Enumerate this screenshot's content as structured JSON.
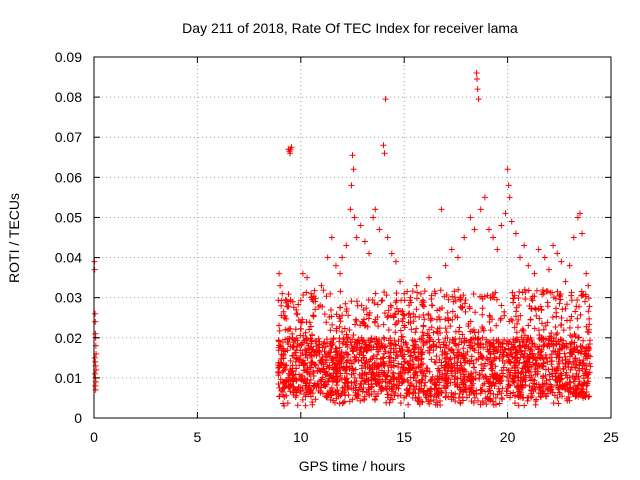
{
  "chart_data": {
    "type": "scatter",
    "title": "Day 211 of 2018, Rate Of TEC Index for receiver lama",
    "xlabel": "GPS time / hours",
    "ylabel": "ROTI / TECUs",
    "xlim": [
      0,
      25
    ],
    "ylim": [
      0,
      0.09
    ],
    "xticks": [
      0,
      5,
      10,
      15,
      20,
      25
    ],
    "xtick_labels": [
      "0",
      "5",
      "10",
      "15",
      "20",
      "25"
    ],
    "yticks": [
      0,
      0.01,
      0.02,
      0.03,
      0.04,
      0.05,
      0.06,
      0.07,
      0.08,
      0.09
    ],
    "ytick_labels": [
      "0",
      "0.01",
      "0.02",
      "0.03",
      "0.04",
      "0.05",
      "0.06",
      "0.07",
      "0.08",
      "0.09"
    ],
    "grid": true,
    "marker": "+",
    "color": "#ff0000",
    "series": [
      {
        "name": "ROTI",
        "points": [
          [
            0.02,
            0.039
          ],
          [
            0.03,
            0.037
          ],
          [
            0.05,
            0.026
          ],
          [
            0.06,
            0.024
          ],
          [
            0.07,
            0.021
          ],
          [
            0.08,
            0.02
          ],
          [
            0.09,
            0.018
          ],
          [
            0.1,
            0.016
          ],
          [
            0.04,
            0.015
          ],
          [
            0.06,
            0.014
          ],
          [
            0.08,
            0.013
          ],
          [
            0.1,
            0.012
          ],
          [
            0.05,
            0.011
          ],
          [
            0.07,
            0.01
          ],
          [
            0.09,
            0.009
          ],
          [
            0.06,
            0.008
          ],
          [
            0.08,
            0.007
          ],
          [
            8.95,
            0.036
          ],
          [
            9.0,
            0.033
          ],
          [
            9.05,
            0.028
          ],
          [
            9.1,
            0.031
          ],
          [
            9.2,
            0.025
          ],
          [
            9.25,
            0.022
          ],
          [
            9.4,
            0.067
          ],
          [
            9.45,
            0.0665
          ],
          [
            9.5,
            0.067
          ],
          [
            9.55,
            0.0675
          ],
          [
            9.48,
            0.066
          ],
          [
            9.6,
            0.02
          ],
          [
            9.8,
            0.026
          ],
          [
            10.0,
            0.024
          ],
          [
            10.1,
            0.036
          ],
          [
            10.3,
            0.035
          ],
          [
            10.5,
            0.031
          ],
          [
            10.7,
            0.029
          ],
          [
            11.0,
            0.033
          ],
          [
            11.3,
            0.04
          ],
          [
            11.5,
            0.045
          ],
          [
            11.7,
            0.038
          ],
          [
            11.9,
            0.036
          ],
          [
            12.0,
            0.04
          ],
          [
            12.2,
            0.043
          ],
          [
            12.4,
            0.052
          ],
          [
            12.45,
            0.058
          ],
          [
            12.5,
            0.0655
          ],
          [
            12.55,
            0.062
          ],
          [
            12.6,
            0.05
          ],
          [
            12.7,
            0.045
          ],
          [
            12.9,
            0.048
          ],
          [
            13.1,
            0.044
          ],
          [
            13.3,
            0.041
          ],
          [
            13.5,
            0.05
          ],
          [
            13.6,
            0.052
          ],
          [
            13.8,
            0.047
          ],
          [
            14.0,
            0.068
          ],
          [
            14.05,
            0.066
          ],
          [
            14.1,
            0.0795
          ],
          [
            14.2,
            0.045
          ],
          [
            14.4,
            0.041
          ],
          [
            14.6,
            0.039
          ],
          [
            14.8,
            0.034
          ],
          [
            15.0,
            0.031
          ],
          [
            15.3,
            0.03
          ],
          [
            15.6,
            0.033
          ],
          [
            15.9,
            0.028
          ],
          [
            16.2,
            0.035
          ],
          [
            16.5,
            0.031
          ],
          [
            16.8,
            0.052
          ],
          [
            17.0,
            0.038
          ],
          [
            17.3,
            0.042
          ],
          [
            17.6,
            0.04
          ],
          [
            17.9,
            0.045
          ],
          [
            18.2,
            0.05
          ],
          [
            18.4,
            0.047
          ],
          [
            18.5,
            0.086
          ],
          [
            18.52,
            0.0845
          ],
          [
            18.55,
            0.082
          ],
          [
            18.6,
            0.0795
          ],
          [
            18.7,
            0.052
          ],
          [
            18.9,
            0.055
          ],
          [
            19.1,
            0.047
          ],
          [
            19.3,
            0.045
          ],
          [
            19.5,
            0.042
          ],
          [
            19.7,
            0.048
          ],
          [
            19.9,
            0.051
          ],
          [
            20.0,
            0.062
          ],
          [
            20.05,
            0.058
          ],
          [
            20.1,
            0.055
          ],
          [
            20.2,
            0.049
          ],
          [
            20.4,
            0.046
          ],
          [
            20.6,
            0.04
          ],
          [
            20.8,
            0.043
          ],
          [
            21.0,
            0.038
          ],
          [
            21.3,
            0.036
          ],
          [
            21.5,
            0.042
          ],
          [
            21.8,
            0.04
          ],
          [
            22.0,
            0.037
          ],
          [
            22.2,
            0.043
          ],
          [
            22.4,
            0.041
          ],
          [
            22.6,
            0.039
          ],
          [
            22.8,
            0.034
          ],
          [
            23.0,
            0.038
          ],
          [
            23.2,
            0.045
          ],
          [
            23.4,
            0.05
          ],
          [
            23.5,
            0.051
          ],
          [
            23.6,
            0.046
          ],
          [
            23.8,
            0.036
          ],
          [
            23.9,
            0.033
          ]
        ],
        "dense_band": {
          "x_range": [
            8.9,
            24.0
          ],
          "y_core": [
            0.005,
            0.02
          ],
          "y_upper": [
            0.02,
            0.032
          ],
          "y_floor": 0.003
        }
      }
    ]
  }
}
